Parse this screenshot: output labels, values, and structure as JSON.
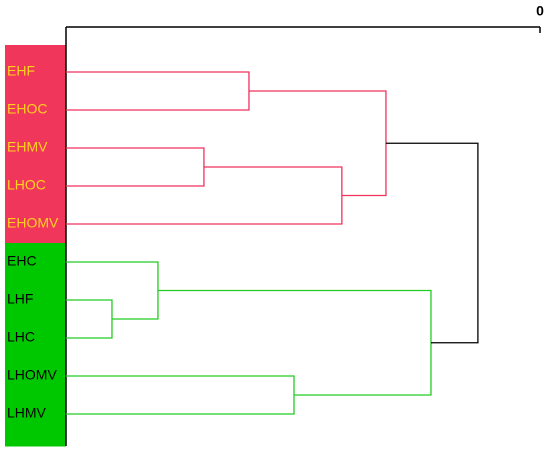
{
  "chart_data": {
    "type": "dendrogram",
    "xlim": [
      100,
      0
    ],
    "xticks": [
      0
    ],
    "leaves": [
      {
        "label": "EHF",
        "fill": "#f0365a",
        "text_color": "#ffd21e"
      },
      {
        "label": "EHOC",
        "fill": "#f0365a",
        "text_color": "#ffd21e"
      },
      {
        "label": "EHMV",
        "fill": "#f0365a",
        "text_color": "#ffd21e"
      },
      {
        "label": "LHOC",
        "fill": "#f0365a",
        "text_color": "#ffd21e"
      },
      {
        "label": "EHOMV",
        "fill": "#f0365a",
        "text_color": "#ffd21e"
      },
      {
        "label": "EHC",
        "fill": "#00c800",
        "text_color": "#000000"
      },
      {
        "label": "LHF",
        "fill": "#00c800",
        "text_color": "#000000"
      },
      {
        "label": "LHC",
        "fill": "#00c800",
        "text_color": "#000000"
      },
      {
        "label": "LHOMV",
        "fill": "#00c800",
        "text_color": "#000000"
      },
      {
        "label": "LHMV",
        "fill": "#00c800",
        "text_color": "#000000"
      }
    ],
    "merges": [
      {
        "children": [
          0,
          1
        ],
        "height": 61.4,
        "color": "#f0325a"
      },
      {
        "children": [
          2,
          3
        ],
        "height": 70.9,
        "color": "#f0325a"
      },
      {
        "children": [
          11,
          4
        ],
        "height": 41.8,
        "color": "#f0325a"
      },
      {
        "children": [
          10,
          12
        ],
        "height": 32.5,
        "color": "#f0325a"
      },
      {
        "children": [
          6,
          7
        ],
        "height": 90.3,
        "color": "#22cc22"
      },
      {
        "children": [
          5,
          14
        ],
        "height": 80.6,
        "color": "#22cc22"
      },
      {
        "children": [
          8,
          9
        ],
        "height": 51.9,
        "color": "#22cc22"
      },
      {
        "children": [
          15,
          16
        ],
        "height": 23.0,
        "color": "#22cc22"
      },
      {
        "children": [
          13,
          17
        ],
        "height": 13.1,
        "color": "#000000"
      }
    ]
  }
}
